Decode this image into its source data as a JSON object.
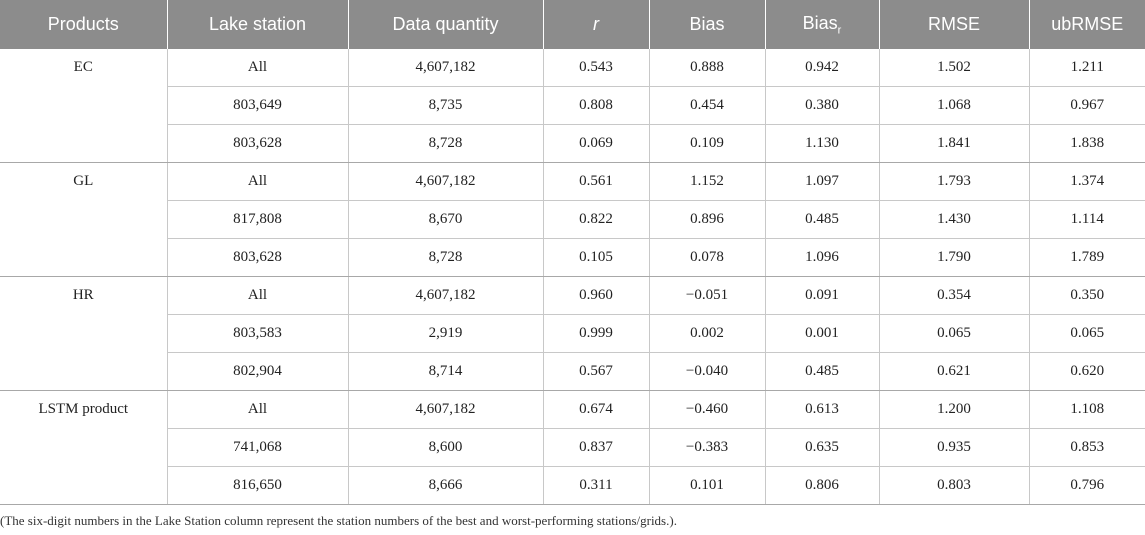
{
  "table": {
    "headers": [
      "Products",
      "Lake station",
      "Data quantity",
      "r",
      "Bias",
      "Bias",
      "RMSE",
      "ubRMSE"
    ],
    "bias_r_subscript": "r",
    "groups": [
      {
        "product": "EC",
        "rows": [
          [
            "All",
            "4,607,182",
            "0.543",
            "0.888",
            "0.942",
            "1.502",
            "1.211"
          ],
          [
            "803,649",
            "8,735",
            "0.808",
            "0.454",
            "0.380",
            "1.068",
            "0.967"
          ],
          [
            "803,628",
            "8,728",
            "0.069",
            "0.109",
            "1.130",
            "1.841",
            "1.838"
          ]
        ]
      },
      {
        "product": "GL",
        "rows": [
          [
            "All",
            "4,607,182",
            "0.561",
            "1.152",
            "1.097",
            "1.793",
            "1.374"
          ],
          [
            "817,808",
            "8,670",
            "0.822",
            "0.896",
            "0.485",
            "1.430",
            "1.114"
          ],
          [
            "803,628",
            "8,728",
            "0.105",
            "0.078",
            "1.096",
            "1.790",
            "1.789"
          ]
        ]
      },
      {
        "product": "HR",
        "rows": [
          [
            "All",
            "4,607,182",
            "0.960",
            "−0.051",
            "0.091",
            "0.354",
            "0.350"
          ],
          [
            "803,583",
            "2,919",
            "0.999",
            "0.002",
            "0.001",
            "0.065",
            "0.065"
          ],
          [
            "802,904",
            "8,714",
            "0.567",
            "−0.040",
            "0.485",
            "0.621",
            "0.620"
          ]
        ]
      },
      {
        "product": "LSTM product",
        "rows": [
          [
            "All",
            "4,607,182",
            "0.674",
            "−0.460",
            "0.613",
            "1.200",
            "1.108"
          ],
          [
            "741,068",
            "8,600",
            "0.837",
            "−0.383",
            "0.635",
            "0.935",
            "0.853"
          ],
          [
            "816,650",
            "8,666",
            "0.311",
            "0.101",
            "0.806",
            "0.803",
            "0.796"
          ]
        ]
      }
    ],
    "footnote": "(The six-digit numbers in the Lake Station column represent the station numbers of the best and worst-performing stations/grids.)."
  }
}
